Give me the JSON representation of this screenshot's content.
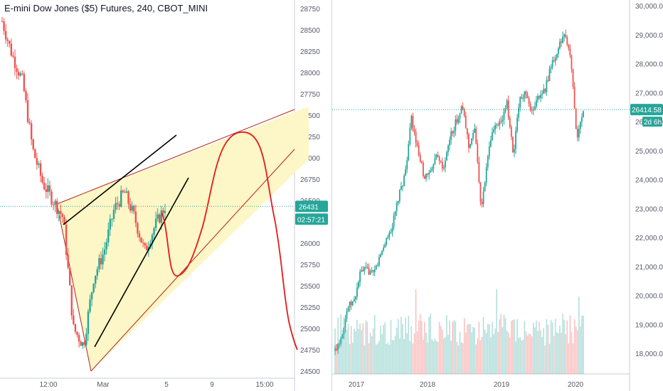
{
  "left_chart": {
    "title": "E-mini Dow Jones ($5) Futures, 240, CBOT_MINI",
    "price_tag": "26431",
    "time_tag": "02:57:21",
    "colors": {
      "up": "#26a69a",
      "down": "#ef5350",
      "wedge_fill": "#fdf6c6",
      "wedge_stroke": "#b22222",
      "curve": "#e31a1c",
      "trend": "#000000",
      "tag": "#26a69a"
    }
  },
  "right_chart": {
    "price_tag": "26414.58",
    "countdown_tag": "2d 6h",
    "colors": {
      "up": "#26a69a",
      "down": "#ef5350",
      "tag": "#26a69a",
      "countdown": "#26a69a"
    }
  },
  "chart_data": [
    {
      "type": "candlestick",
      "title": "E-mini Dow Jones ($5) Futures, 240, CBOT_MINI",
      "y_ticks": [
        24500,
        24750,
        25000,
        25250,
        25500,
        25750,
        26000,
        26250,
        26500,
        26750,
        27000,
        27250,
        27500,
        27750,
        28000,
        28250,
        28500,
        28750
      ],
      "ylim": [
        24450,
        28850
      ],
      "x_ticks": [
        "12:00",
        "Mar",
        "5",
        "9",
        "15:00"
      ],
      "last_price": 26431,
      "approx_close_path": [
        28600,
        28200,
        27900,
        27100,
        26700,
        26500,
        26300,
        25000,
        24800,
        25600,
        25900,
        26400,
        26600,
        26300,
        25900,
        26200,
        26431
      ],
      "annotations": [
        "rising wedge (triangle)",
        "two black trend lines",
        "red projected path"
      ]
    },
    {
      "type": "candlestick_with_volume",
      "y_ticks": [
        18000,
        19000,
        20000,
        21000,
        22000,
        23000,
        24000,
        25000,
        26000,
        27000,
        28000,
        29000,
        30000
      ],
      "ylim": [
        17600,
        30100
      ],
      "x_ticks": [
        "2017",
        "2018",
        "2019",
        "2020"
      ],
      "last_price": 26414.58,
      "approx_monthly_close": [
        18100,
        18600,
        19600,
        19800,
        20800,
        20900,
        20700,
        21300,
        21900,
        22400,
        23400,
        24200,
        26100,
        25000,
        24100,
        24200,
        24800,
        24300,
        25400,
        26000,
        26500,
        25200,
        25700,
        22900,
        24800,
        25900,
        26000,
        26600,
        24900,
        26700,
        27000,
        26300,
        26900,
        27100,
        28000,
        28500,
        29000,
        28300,
        25400,
        26414.58
      ]
    }
  ]
}
